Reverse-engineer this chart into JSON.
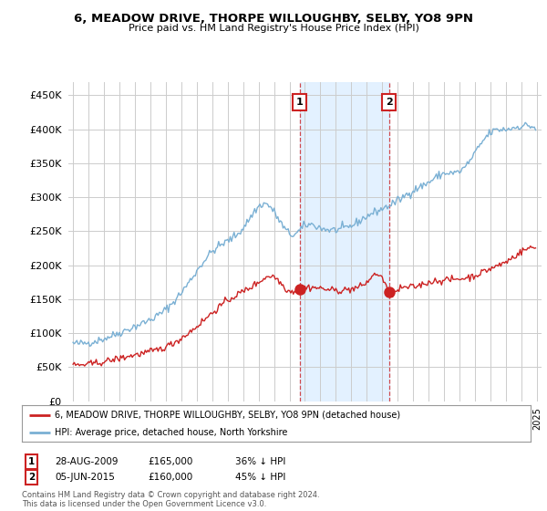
{
  "title": "6, MEADOW DRIVE, THORPE WILLOUGHBY, SELBY, YO8 9PN",
  "subtitle": "Price paid vs. HM Land Registry's House Price Index (HPI)",
  "ytick_vals": [
    0,
    50000,
    100000,
    150000,
    200000,
    250000,
    300000,
    350000,
    400000,
    450000
  ],
  "xlim": [
    1994.7,
    2025.3
  ],
  "ylim": [
    0,
    470000
  ],
  "transaction1": {
    "date_num": 2009.66,
    "price": 165000,
    "label": "1",
    "text": "28-AUG-2009",
    "amount": "£165,000",
    "hpi_diff": "36% ↓ HPI"
  },
  "transaction2": {
    "date_num": 2015.43,
    "price": 160000,
    "label": "2",
    "text": "05-JUN-2015",
    "amount": "£160,000",
    "hpi_diff": "45% ↓ HPI"
  },
  "legend_line1": "6, MEADOW DRIVE, THORPE WILLOUGHBY, SELBY, YO8 9PN (detached house)",
  "legend_line2": "HPI: Average price, detached house, North Yorkshire",
  "footer": "Contains HM Land Registry data © Crown copyright and database right 2024.\nThis data is licensed under the Open Government Licence v3.0.",
  "hpi_color": "#7ab0d4",
  "price_color": "#cc2222",
  "bg_color": "#ffffff",
  "shade_color": "#ddeeff",
  "grid_color": "#cccccc"
}
